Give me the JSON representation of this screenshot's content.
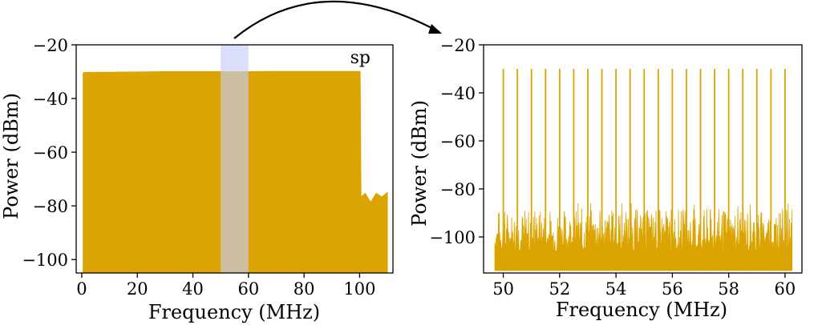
{
  "chart_data": [
    {
      "type": "area",
      "xlabel": "Frequency (MHz)",
      "ylabel": "Power (dBm)",
      "xlim": [
        -2,
        112
      ],
      "ylim": [
        -105,
        -20
      ],
      "xticks": [
        0,
        20,
        40,
        60,
        80,
        100
      ],
      "yticks": [
        -20,
        -40,
        -60,
        -80,
        -100
      ],
      "annotation": "sp",
      "highlight_range_mhz": [
        50,
        60
      ],
      "color": "#dba400",
      "highlight_color": "#c8ccf8",
      "series": [
        {
          "x": [
            0.5,
            1,
            10,
            20,
            30,
            40,
            50,
            60,
            70,
            80,
            90,
            100,
            100.5,
            102,
            104,
            106,
            108,
            110
          ],
          "values": [
            -30.5,
            -30.3,
            -30.2,
            -30.1,
            -30.0,
            -30.0,
            -30.0,
            -30.0,
            -29.9,
            -29.9,
            -29.9,
            -29.9,
            -75.5,
            -76.5,
            -77.5,
            -76.5,
            -75.5,
            -75.0
          ]
        }
      ]
    },
    {
      "type": "line",
      "xlabel": "Frequency (MHz)",
      "ylabel": "Power (dBm)",
      "xlim": [
        49.3,
        60.6
      ],
      "ylim": [
        -115,
        -20
      ],
      "xticks": [
        50,
        52,
        54,
        56,
        58,
        60
      ],
      "yticks": [
        -20,
        -40,
        -60,
        -80,
        -100
      ],
      "color": "#dba400",
      "noise_floor_dbm": -114,
      "noise_top_range_dbm": [
        -106,
        -86
      ],
      "tones": {
        "x": [
          50.0,
          50.5,
          51.0,
          51.5,
          52.0,
          52.5,
          53.0,
          53.5,
          54.0,
          54.5,
          55.0,
          55.5,
          56.0,
          56.5,
          57.0,
          57.5,
          58.0,
          58.5,
          59.0,
          59.5,
          60.0
        ],
        "values": [
          -30,
          -30,
          -30,
          -30,
          -30,
          -30,
          -30,
          -30,
          -30,
          -30,
          -30,
          -30,
          -30,
          -30,
          -30,
          -30,
          -30,
          -30,
          -30,
          -30,
          -30
        ]
      }
    }
  ]
}
